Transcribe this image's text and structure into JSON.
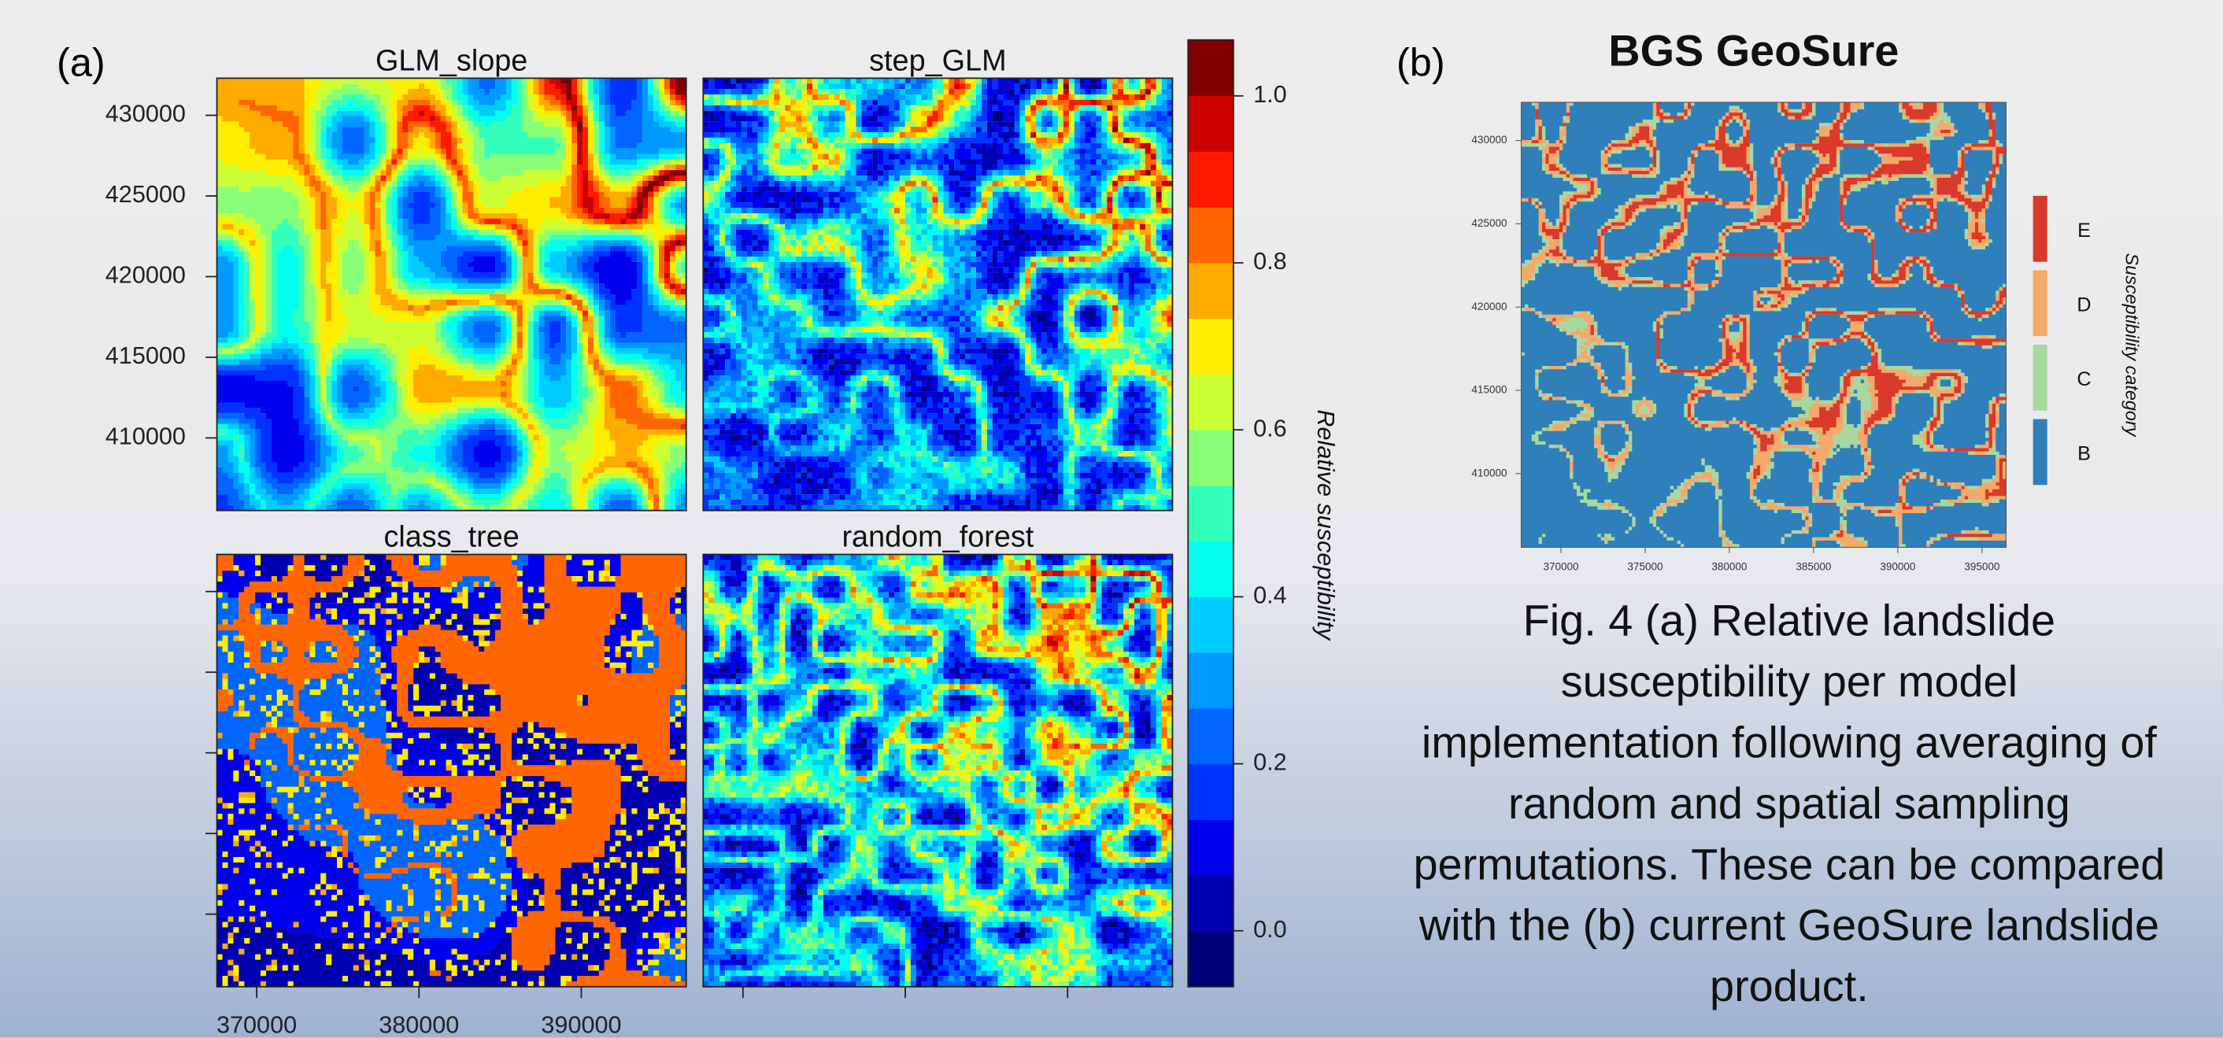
{
  "chart_data": [
    {
      "type": "heatmap",
      "panel_label": "(a)",
      "panels": [
        "GLM_slope",
        "step_GLM",
        "class_tree",
        "random_forest"
      ],
      "xlim": [
        367550,
        396460
      ],
      "xticks": [
        370000,
        380000,
        390000
      ],
      "ylim": [
        405500,
        432300
      ],
      "yticks": [
        430000,
        425000,
        420000,
        415000,
        410000
      ],
      "colorbar": {
        "label": "Relative susceptibility",
        "ylim": [
          -0.067,
          1.067
        ],
        "yticks": [
          {
            "value": 1,
            "label": "1.0"
          },
          {
            "value": 0.8,
            "label": "0.8"
          },
          {
            "value": 0.6,
            "label": "0.6"
          },
          {
            "value": 0.4,
            "label": "0.4"
          },
          {
            "value": 0.2,
            "label": "0.2"
          },
          {
            "value": 0,
            "label": "0.0"
          }
        ],
        "colors": [
          "#00007a",
          "#0000b0",
          "#0000ee",
          "#0033ff",
          "#0066ff",
          "#0099ff",
          "#00ccff",
          "#00ffee",
          "#33ffbb",
          "#88ff77",
          "#ccff33",
          "#ffee00",
          "#ffaa00",
          "#ff6600",
          "#ff1a00",
          "#cc0000",
          "#800000"
        ]
      }
    },
    {
      "type": "categorical-map",
      "panel_label": "(b)",
      "title": "BGS GeoSure",
      "xlim": [
        367640,
        396430
      ],
      "xticks": [
        370000,
        375000,
        380000,
        385000,
        390000,
        395000
      ],
      "ylim": [
        405570,
        432300
      ],
      "yticks": [
        430000,
        425000,
        420000,
        415000,
        410000
      ],
      "legend": {
        "title": "Susceptibility category",
        "categories": [
          "E",
          "D",
          "C",
          "B"
        ],
        "colors": [
          "#d93a2b",
          "#f4a86a",
          "#a8d8a0",
          "#2f7fba"
        ]
      }
    }
  ],
  "caption": [
    "Fig. 4 (a) Relative landslide",
    "susceptibility per model",
    "implementation following averaging of",
    "random and spatial sampling",
    "permutations. These can be compared",
    "with the (b) current GeoSure landslide",
    "product."
  ]
}
